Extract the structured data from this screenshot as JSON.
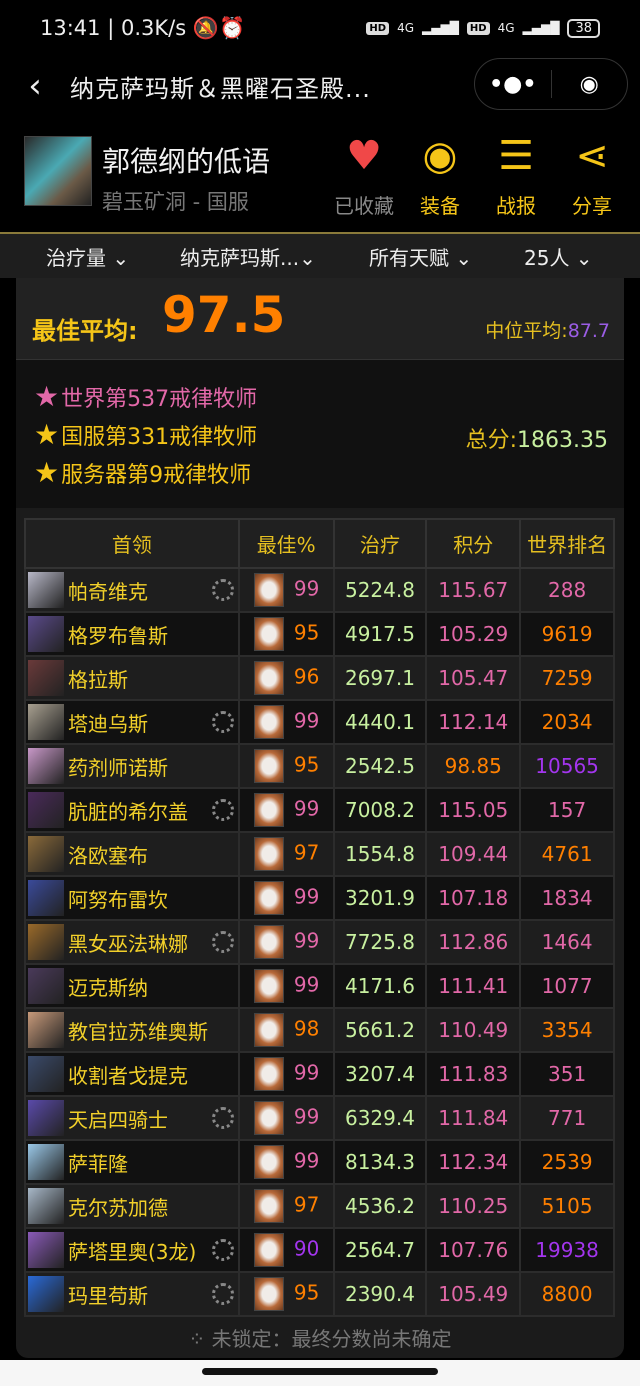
{
  "status": {
    "time": "13:41",
    "speed": "0.3K/s",
    "signal1": "4G",
    "signal2": "4G",
    "hd": "HD",
    "battery": "38"
  },
  "nav": {
    "title": "纳克萨玛斯＆黑曜石圣殿..."
  },
  "profile": {
    "name": "郭德纲的低语",
    "server": "碧玉矿洞 - 国服"
  },
  "actions": [
    {
      "label": "已收藏",
      "icon": "heart-icon",
      "color": "#f04848"
    },
    {
      "label": "装备",
      "icon": "user-circle-icon",
      "color": "#f5c518"
    },
    {
      "label": "战报",
      "icon": "list-icon",
      "color": "#f5c518"
    },
    {
      "label": "分享",
      "icon": "share-icon",
      "color": "#f5c518"
    }
  ],
  "filters": [
    "治疗量",
    "纳克萨玛斯...",
    "所有天赋",
    "25人"
  ],
  "summary": {
    "best_label": "最佳平均:",
    "best_value": "97.5",
    "median_label": "中位平均:",
    "median_value": "87.7",
    "ranks": [
      {
        "text": "世界第537戒律牧师",
        "color": "#e268a8"
      },
      {
        "text": "国服第331戒律牧师",
        "color": "#f5c518"
      },
      {
        "text": "服务器第9戒律牧师",
        "color": "#f5c518"
      }
    ],
    "total_label": "总分:",
    "total_value": "1863.35"
  },
  "table": {
    "headers": [
      "首领",
      "最佳%",
      "治疗",
      "积分",
      "世界排名"
    ],
    "rows": [
      {
        "boss": "帕奇维克",
        "spin": true,
        "best": "99",
        "heal": "5224.8",
        "points": "115.67",
        "rank": "288",
        "bc": "#e268a8",
        "pc": "#e268a8",
        "rc": "#e268a8",
        "img": "#b8b8c8"
      },
      {
        "boss": "格罗布鲁斯",
        "spin": false,
        "best": "95",
        "heal": "4917.5",
        "points": "105.29",
        "rank": "9619",
        "bc": "#ff8000",
        "pc": "#e268a8",
        "rc": "#ff8000",
        "img": "#5a4a8a"
      },
      {
        "boss": "格拉斯",
        "spin": false,
        "best": "96",
        "heal": "2697.1",
        "points": "105.47",
        "rank": "7259",
        "bc": "#ff8000",
        "pc": "#e268a8",
        "rc": "#ff8000",
        "img": "#6a3a3a"
      },
      {
        "boss": "塔迪乌斯",
        "spin": true,
        "best": "99",
        "heal": "4440.1",
        "points": "112.14",
        "rank": "2034",
        "bc": "#e268a8",
        "pc": "#e268a8",
        "rc": "#ff8000",
        "img": "#a8a090"
      },
      {
        "boss": "药剂师诺斯",
        "spin": false,
        "best": "95",
        "heal": "2542.5",
        "points": "98.85",
        "rank": "10565",
        "bc": "#ff8000",
        "pc": "#ff8000",
        "rc": "#a335ee",
        "img": "#c898c8"
      },
      {
        "boss": "肮脏的希尔盖",
        "spin": true,
        "best": "99",
        "heal": "7008.2",
        "points": "115.05",
        "rank": "157",
        "bc": "#e268a8",
        "pc": "#e268a8",
        "rc": "#e268a8",
        "img": "#4a2a5a"
      },
      {
        "boss": "洛欧塞布",
        "spin": false,
        "best": "97",
        "heal": "1554.8",
        "points": "109.44",
        "rank": "4761",
        "bc": "#ff8000",
        "pc": "#e268a8",
        "rc": "#ff8000",
        "img": "#8a6a3a"
      },
      {
        "boss": "阿努布雷坎",
        "spin": false,
        "best": "99",
        "heal": "3201.9",
        "points": "107.18",
        "rank": "1834",
        "bc": "#e268a8",
        "pc": "#e268a8",
        "rc": "#e268a8",
        "img": "#3a4a9a"
      },
      {
        "boss": "黑女巫法琳娜",
        "spin": true,
        "best": "99",
        "heal": "7725.8",
        "points": "112.86",
        "rank": "1464",
        "bc": "#e268a8",
        "pc": "#e268a8",
        "rc": "#e268a8",
        "img": "#9a6a2a"
      },
      {
        "boss": "迈克斯纳",
        "spin": false,
        "best": "99",
        "heal": "4171.6",
        "points": "111.41",
        "rank": "1077",
        "bc": "#e268a8",
        "pc": "#e268a8",
        "rc": "#e268a8",
        "img": "#4a3a5a"
      },
      {
        "boss": "教官拉苏维奥斯",
        "spin": false,
        "best": "98",
        "heal": "5661.2",
        "points": "110.49",
        "rank": "3354",
        "bc": "#ff8000",
        "pc": "#e268a8",
        "rc": "#ff8000",
        "img": "#c89a7a"
      },
      {
        "boss": "收割者戈提克",
        "spin": false,
        "best": "99",
        "heal": "3207.4",
        "points": "111.83",
        "rank": "351",
        "bc": "#e268a8",
        "pc": "#e268a8",
        "rc": "#e268a8",
        "img": "#3a4a6a"
      },
      {
        "boss": "天启四骑士",
        "spin": true,
        "best": "99",
        "heal": "6329.4",
        "points": "111.84",
        "rank": "771",
        "bc": "#e268a8",
        "pc": "#e268a8",
        "rc": "#e268a8",
        "img": "#5a4aaa"
      },
      {
        "boss": "萨菲隆",
        "spin": false,
        "best": "99",
        "heal": "8134.3",
        "points": "112.34",
        "rank": "2539",
        "bc": "#e268a8",
        "pc": "#e268a8",
        "rc": "#ff8000",
        "img": "#9ac8e8"
      },
      {
        "boss": "克尔苏加德",
        "spin": false,
        "best": "97",
        "heal": "4536.2",
        "points": "110.25",
        "rank": "5105",
        "bc": "#ff8000",
        "pc": "#e268a8",
        "rc": "#ff8000",
        "img": "#a8b8c8"
      },
      {
        "boss": "萨塔里奥(3龙)",
        "spin": true,
        "best": "90",
        "heal": "2564.7",
        "points": "107.76",
        "rank": "19938",
        "bc": "#a335ee",
        "pc": "#e268a8",
        "rc": "#a335ee",
        "img": "#8a5ab8"
      },
      {
        "boss": "玛里苟斯",
        "spin": true,
        "best": "95",
        "heal": "2390.4",
        "points": "105.49",
        "rank": "8800",
        "bc": "#ff8000",
        "pc": "#e268a8",
        "rc": "#ff8000",
        "img": "#2a6ad8"
      }
    ]
  },
  "footer": "未锁定：最终分数尚未确定"
}
